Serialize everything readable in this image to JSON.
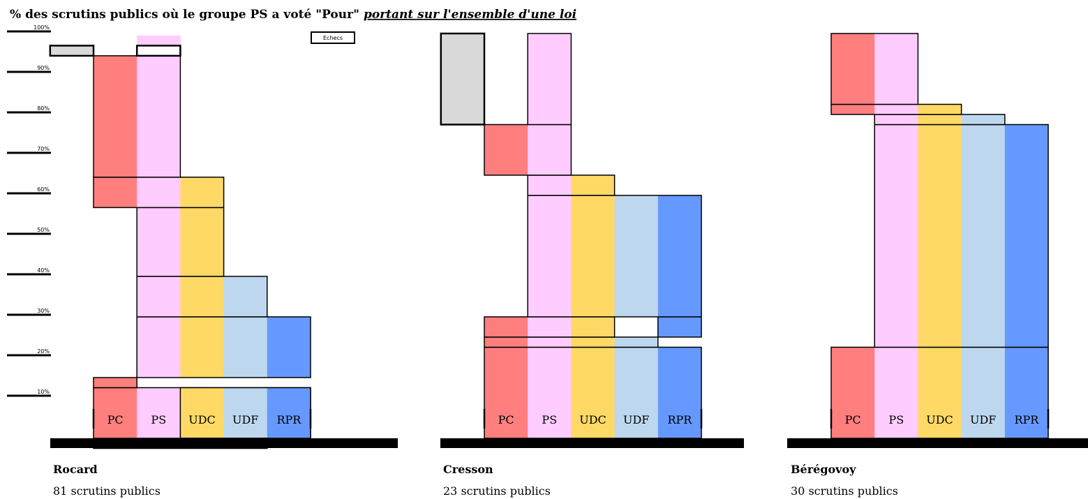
{
  "title": "% des scrutins publics où le groupe PS a voté \"Pour\"",
  "subtitle": "portant sur l'ensemble d'une loi",
  "legend": {
    "failures_label": "Echecs"
  },
  "colors": {
    "PC": "#ff7f7f",
    "PS": "#ffccff",
    "UDC": "#ffd966",
    "UDF": "#bdd7ee",
    "RPR": "#6699ff",
    "Echecs": "#d9d9d9"
  },
  "chart_data": {
    "type": "bar",
    "variant": "stacked coalition blocks per government",
    "categories": [
      "PC",
      "PS",
      "UDC",
      "UDF",
      "RPR"
    ],
    "yaxis": {
      "ticks": [
        10,
        20,
        30,
        40,
        50,
        60,
        70,
        80,
        90,
        100
      ],
      "tick_labels": [
        "10%",
        "20%",
        "30%",
        "40%",
        "50%",
        "60%",
        "70%",
        "80%",
        "90%",
        "100%"
      ],
      "range": [
        0,
        100
      ]
    },
    "panels": [
      {
        "government": "Rocard",
        "subtitle": "81 scrutins publics",
        "blocks": [
          {
            "parties": [
              "PC",
              "PS",
              "UDC",
              "UDF"
            ],
            "bottom": -2.5,
            "top": 12.5
          },
          {
            "parties": [
              "PC"
            ],
            "bottom": 12.5,
            "top": 15
          },
          {
            "parties": [
              "RPR"
            ],
            "bottom": 0,
            "top": 12.5,
            "outline_only": true
          },
          {
            "parties": [
              "UDC",
              "UDF",
              "RPR"
            ],
            "bottom": 0,
            "top": 12.5
          },
          {
            "parties": [
              "PS",
              "UDC",
              "UDF",
              "RPR"
            ],
            "bottom": 15,
            "top": 30
          },
          {
            "parties": [
              "PS",
              "UDC",
              "UDF"
            ],
            "bottom": 30,
            "top": 40
          },
          {
            "parties": [
              "PS",
              "UDC"
            ],
            "bottom": 40,
            "top": 57
          },
          {
            "parties": [
              "PC",
              "PS",
              "UDC"
            ],
            "bottom": 57,
            "top": 64.5
          },
          {
            "parties": [
              "PC",
              "PS"
            ],
            "bottom": 64.5,
            "top": 94.5
          },
          {
            "parties": [
              "Echecs"
            ],
            "bottom": 94.5,
            "top": 97
          },
          {
            "parties": [
              "PS"
            ],
            "bottom": 97,
            "top": 99.5,
            "no_border": true
          }
        ],
        "outlines": [
          {
            "parties": [
              "PS"
            ],
            "bottom": 94.5,
            "top": 97
          }
        ],
        "bottom_outline": {
          "parties": [
            "PC",
            "PS",
            "UDC",
            "UDF"
          ],
          "bottom": -2.5,
          "top": 0
        }
      },
      {
        "government": "Cresson",
        "subtitle": "23 scrutins publics",
        "blocks": [
          {
            "parties": [
              "PC",
              "PS",
              "UDC",
              "UDF",
              "RPR"
            ],
            "bottom": 0,
            "top": 22.5
          },
          {
            "parties": [
              "PC",
              "PS",
              "UDC",
              "UDF"
            ],
            "bottom": 22.5,
            "top": 25
          },
          {
            "parties": [
              "PC",
              "PS",
              "UDC"
            ],
            "bottom": 25,
            "top": 30
          },
          {
            "parties": [
              "RPR"
            ],
            "bottom": 25,
            "top": 30
          },
          {
            "parties": [
              "PS",
              "UDC",
              "UDF",
              "RPR"
            ],
            "bottom": 30,
            "top": 60
          },
          {
            "parties": [
              "PS",
              "UDC"
            ],
            "bottom": 60,
            "top": 65
          },
          {
            "parties": [
              "PC",
              "PS"
            ],
            "bottom": 65,
            "top": 77.5
          },
          {
            "parties": [
              "Echecs"
            ],
            "bottom": 77.5,
            "top": 100
          },
          {
            "parties": [
              "PS"
            ],
            "bottom": 77.5,
            "top": 100
          }
        ]
      },
      {
        "government": "Bérégovoy",
        "subtitle": "30 scrutins publics",
        "blocks": [
          {
            "parties": [
              "PC",
              "PS",
              "UDC",
              "UDF",
              "RPR"
            ],
            "bottom": 0,
            "top": 22.5
          },
          {
            "parties": [
              "PS",
              "UDC",
              "UDF",
              "RPR"
            ],
            "bottom": 22.5,
            "top": 77.5
          },
          {
            "parties": [
              "PS",
              "UDC",
              "UDF"
            ],
            "bottom": 77.5,
            "top": 80
          },
          {
            "parties": [
              "PC",
              "PS",
              "UDC"
            ],
            "bottom": 80,
            "top": 82.5
          },
          {
            "parties": [
              "PC",
              "PS"
            ],
            "bottom": 82.5,
            "top": 100
          }
        ]
      }
    ]
  }
}
